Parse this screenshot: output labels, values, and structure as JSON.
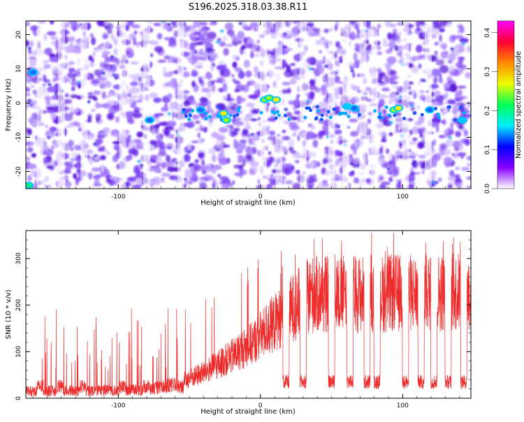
{
  "title": "S196.2025.318.03.38.R11",
  "colors": {
    "axis": "#000000",
    "snr_line": "#ee2b2b",
    "noise_low": "#ffffff",
    "noise_mid": "#c6a8ff",
    "noise_high": "#6a1ee0"
  },
  "chart_data": [
    {
      "type": "heatmap",
      "name": "spectrogram",
      "xlabel": "Height of straight line (km)",
      "ylabel": "Frequency (Hz)",
      "xlim": [
        -165,
        148
      ],
      "ylim": [
        -25,
        24
      ],
      "x_ticks": [
        {
          "value": -100,
          "label": "-100"
        },
        {
          "value": 0,
          "label": "0"
        },
        {
          "value": 100,
          "label": "100"
        }
      ],
      "y_ticks": [
        {
          "value": 20,
          "label": "20"
        },
        {
          "value": 10,
          "label": "10"
        },
        {
          "value": 0,
          "label": "0"
        },
        {
          "value": -10,
          "label": "-10"
        },
        {
          "value": -20,
          "label": "-20"
        }
      ],
      "colorbar": {
        "label": "Normalized spectral amplitude",
        "range": [
          0.0,
          0.43
        ],
        "ticks": [
          {
            "value": 0.0,
            "label": "0.0"
          },
          {
            "value": 0.1,
            "label": "0.1"
          },
          {
            "value": 0.2,
            "label": "0.2"
          },
          {
            "value": 0.3,
            "label": "0.3"
          },
          {
            "value": 0.4,
            "label": "0.4"
          }
        ],
        "stops": [
          "#ff00ff",
          "#ff0033",
          "#ff8800",
          "#eeff00",
          "#00ff55",
          "#00eeff",
          "#0000ff",
          "#8800ff",
          "#ffffff"
        ]
      },
      "dropout_bands_x": [
        -155,
        -140,
        -124,
        -97,
        -80,
        -56,
        2,
        13,
        30,
        50,
        60,
        72,
        80,
        102,
        118
      ],
      "signal_blobs": [
        {
          "x": -26,
          "y": -3,
          "amp": 0.27
        },
        {
          "x": -24,
          "y": -5,
          "amp": 0.25
        },
        {
          "x": 3,
          "y": 1,
          "amp": 0.24
        },
        {
          "x": 6,
          "y": 1.5,
          "amp": 0.22
        },
        {
          "x": 11,
          "y": 1,
          "amp": 0.26
        },
        {
          "x": 94,
          "y": -2,
          "amp": 0.24
        },
        {
          "x": 97,
          "y": -1.5,
          "amp": 0.28
        },
        {
          "x": 61,
          "y": -1,
          "amp": 0.14
        },
        {
          "x": 66,
          "y": -1.5,
          "amp": 0.13
        },
        {
          "x": 119,
          "y": -2,
          "amp": 0.12
        },
        {
          "x": -78,
          "y": -5,
          "amp": 0.12
        },
        {
          "x": -42,
          "y": -2,
          "amp": 0.1
        },
        {
          "x": 142,
          "y": -5,
          "amp": 0.16
        },
        {
          "x": -160,
          "y": 9,
          "amp": 0.12
        },
        {
          "x": -163,
          "y": -24,
          "amp": 0.18
        }
      ]
    },
    {
      "type": "line",
      "name": "snr",
      "xlabel": "Height of straight line (km)",
      "ylabel": "SNR (10 * v/v)",
      "xlim": [
        -165,
        148
      ],
      "ylim": [
        0,
        360
      ],
      "x_ticks": [
        {
          "value": -100,
          "label": "-100"
        },
        {
          "value": 0,
          "label": "0"
        },
        {
          "value": 100,
          "label": "100"
        }
      ],
      "y_ticks": [
        {
          "value": 300,
          "label": "300"
        },
        {
          "value": 200,
          "label": "200"
        },
        {
          "value": 100,
          "label": "100"
        },
        {
          "value": 0,
          "label": "0"
        }
      ],
      "baseline_segments": [
        {
          "x": -165,
          "y": 15
        },
        {
          "x": -80,
          "y": 18
        },
        {
          "x": -60,
          "y": 30
        },
        {
          "x": -40,
          "y": 55
        },
        {
          "x": -20,
          "y": 90
        },
        {
          "x": -5,
          "y": 120
        },
        {
          "x": 5,
          "y": 150
        },
        {
          "x": 15,
          "y": 175
        },
        {
          "x": 25,
          "y": 200
        },
        {
          "x": 35,
          "y": 222
        },
        {
          "x": 148,
          "y": 228
        }
      ],
      "dropouts_x": [
        -155,
        -141,
        -125,
        -97,
        -80,
        -56,
        18,
        30,
        50,
        63,
        75,
        82,
        102,
        113,
        122,
        132,
        143
      ],
      "peak_level": 330
    }
  ]
}
